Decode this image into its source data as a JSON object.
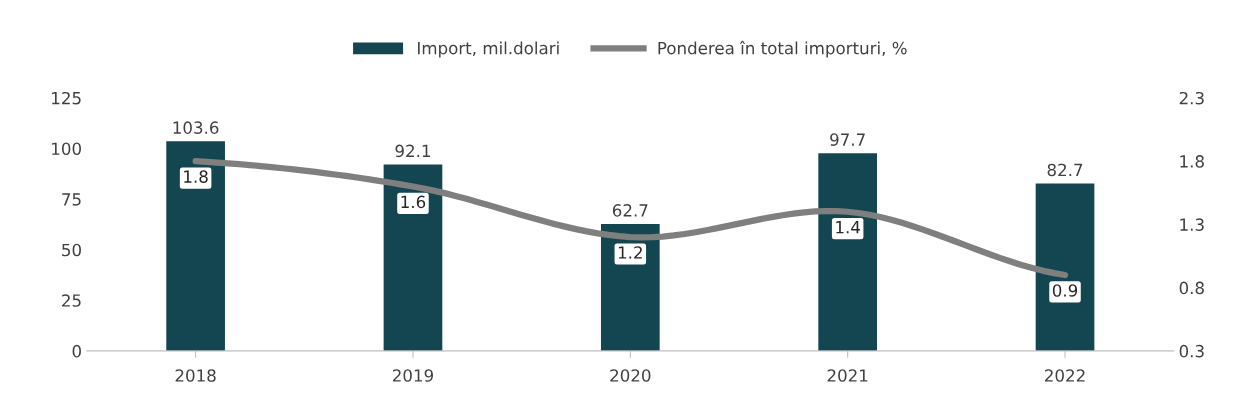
{
  "chart_data": {
    "type": "bar",
    "categories": [
      "2018",
      "2019",
      "2020",
      "2021",
      "2022"
    ],
    "series": [
      {
        "name": "Import, mil.dolari",
        "color": "#134651",
        "values": [
          103.6,
          92.1,
          62.7,
          97.7,
          82.7
        ]
      },
      {
        "name": "Ponderea în total importuri, %",
        "type": "line",
        "axis": "y2",
        "color": "#7f7f7f",
        "values": [
          1.8,
          1.6,
          1.2,
          1.4,
          0.9
        ]
      }
    ],
    "ylim": [
      0,
      125
    ],
    "yticks": [
      0,
      25,
      50,
      75,
      100,
      125
    ],
    "y2lim": [
      0.3,
      2.3
    ],
    "y2ticks": [
      0.3,
      0.8,
      1.3,
      1.8,
      2.3
    ],
    "data_labels": true,
    "legend": "top",
    "grid": false,
    "marker": "none",
    "line_style": "solid"
  }
}
